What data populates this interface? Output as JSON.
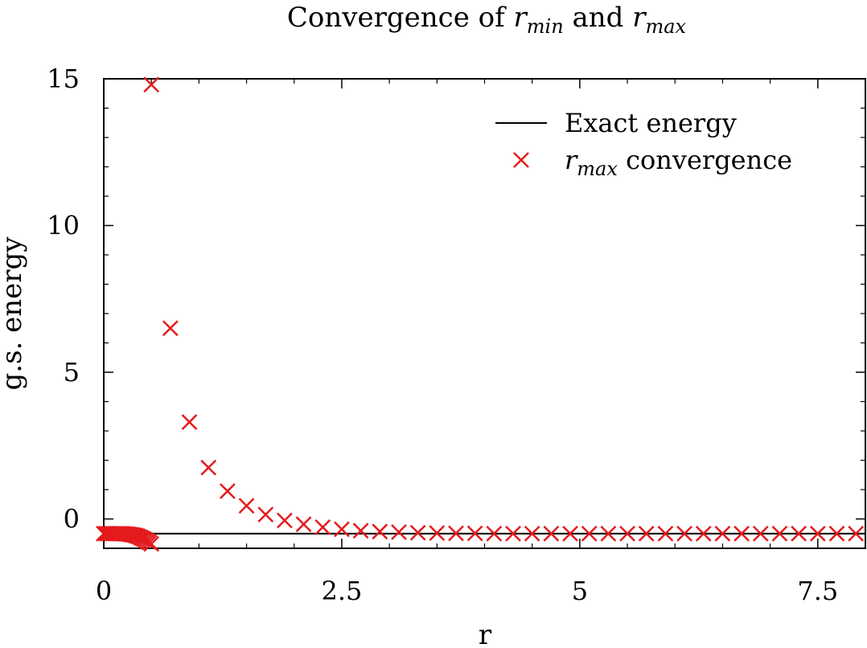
{
  "chart_data": {
    "type": "scatter",
    "title": {
      "prefix": "Convergence of ",
      "var1": "r",
      "sub1": "min",
      "middle": " and ",
      "var2": "r",
      "sub2": "max"
    },
    "xlabel": "r",
    "ylabel": "g.s. energy",
    "xlim": [
      0,
      8
    ],
    "ylim": [
      -1,
      15
    ],
    "xticks": [
      0,
      2.5,
      5,
      7.5
    ],
    "xtick_labels": [
      "0",
      "2.5",
      "5",
      "7.5"
    ],
    "yticks": [
      0,
      5,
      10,
      15
    ],
    "ytick_labels": [
      "0",
      "5",
      "10",
      "15"
    ],
    "grid": false,
    "legend_position": "top-right",
    "colors": {
      "exact": "#000000",
      "markers": "#e41a1c",
      "axes": "#000000"
    },
    "series": [
      {
        "name": "Exact energy",
        "kind": "line",
        "value": -0.5
      },
      {
        "name_var": "r",
        "name_sub": "max",
        "name_rest": " convergence",
        "kind": "markers",
        "x": [
          0.5,
          0.7,
          0.9,
          1.1,
          1.3,
          1.5,
          1.7,
          1.9,
          2.1,
          2.3,
          2.5,
          2.7,
          2.9,
          3.1,
          3.3,
          3.5,
          3.7,
          3.9,
          4.1,
          4.3,
          4.5,
          4.7,
          4.9,
          5.1,
          5.3,
          5.5,
          5.7,
          5.9,
          6.1,
          6.3,
          6.5,
          6.7,
          6.9,
          7.1,
          7.3,
          7.5,
          7.7,
          7.9
        ],
        "y": [
          14.8,
          6.5,
          3.3,
          1.75,
          0.95,
          0.45,
          0.15,
          -0.05,
          -0.18,
          -0.28,
          -0.35,
          -0.4,
          -0.43,
          -0.45,
          -0.47,
          -0.48,
          -0.49,
          -0.49,
          -0.5,
          -0.5,
          -0.5,
          -0.5,
          -0.5,
          -0.5,
          -0.5,
          -0.5,
          -0.5,
          -0.5,
          -0.5,
          -0.5,
          -0.5,
          -0.5,
          -0.5,
          -0.5,
          -0.5,
          -0.5,
          -0.5,
          -0.5
        ]
      },
      {
        "kind": "markers",
        "x": [
          0.0,
          0.02,
          0.04,
          0.06,
          0.08,
          0.1,
          0.12,
          0.14,
          0.16,
          0.18,
          0.2,
          0.22,
          0.24,
          0.26,
          0.28,
          0.3,
          0.32,
          0.34,
          0.36,
          0.38,
          0.4,
          0.42,
          0.44,
          0.46,
          0.48,
          0.5
        ],
        "y": [
          -0.5,
          -0.5,
          -0.5,
          -0.5,
          -0.5,
          -0.5,
          -0.5,
          -0.5,
          -0.5,
          -0.5,
          -0.5,
          -0.51,
          -0.51,
          -0.52,
          -0.53,
          -0.54,
          -0.55,
          -0.57,
          -0.59,
          -0.62,
          -0.65,
          -0.68,
          -0.72,
          -0.76,
          -0.8,
          -0.85
        ]
      }
    ]
  }
}
